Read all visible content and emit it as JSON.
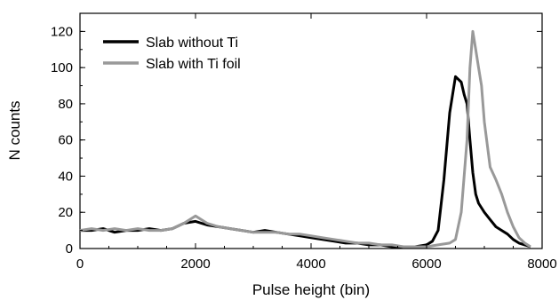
{
  "chart_data": {
    "type": "line",
    "title": "",
    "xlabel": "Pulse height (bin)",
    "ylabel": "N counts",
    "xlim": [
      0,
      8000
    ],
    "ylim": [
      0,
      130
    ],
    "xticks": [
      "0",
      "2000",
      "4000",
      "6000",
      "8000"
    ],
    "yticks": [
      "0",
      "20",
      "40",
      "60",
      "80",
      "100",
      "120"
    ],
    "grid": false,
    "legend_position": "top-left",
    "series": [
      {
        "name": "Slab without Ti",
        "color": "#000000",
        "x": [
          0,
          200,
          400,
          600,
          800,
          1000,
          1200,
          1400,
          1600,
          1800,
          2000,
          2200,
          2400,
          2600,
          2800,
          3000,
          3200,
          3400,
          3600,
          3800,
          4000,
          4200,
          4400,
          4600,
          4800,
          5000,
          5200,
          5400,
          5600,
          5800,
          6000,
          6100,
          6200,
          6300,
          6400,
          6500,
          6600,
          6650,
          6700,
          6750,
          6800,
          6850,
          6900,
          7000,
          7100,
          7200,
          7300,
          7400,
          7500,
          7600,
          7700,
          7800
        ],
        "y": [
          10,
          10,
          11,
          9,
          10,
          10,
          11,
          10,
          11,
          14,
          15,
          13,
          12,
          11,
          10,
          9,
          10,
          9,
          8,
          7,
          6,
          5,
          4,
          3,
          3,
          2,
          2,
          1,
          1,
          1,
          2,
          4,
          10,
          38,
          75,
          95,
          92,
          85,
          80,
          60,
          42,
          30,
          25,
          20,
          16,
          12,
          10,
          8,
          5,
          3,
          2,
          1
        ]
      },
      {
        "name": "Slab with Ti foil",
        "color": "#999999",
        "x": [
          0,
          200,
          400,
          600,
          800,
          1000,
          1200,
          1400,
          1600,
          1800,
          2000,
          2200,
          2400,
          2600,
          2800,
          3000,
          3200,
          3400,
          3600,
          3800,
          4000,
          4200,
          4400,
          4600,
          4800,
          5000,
          5200,
          5400,
          5600,
          5800,
          6000,
          6200,
          6400,
          6500,
          6600,
          6700,
          6750,
          6800,
          6850,
          6900,
          6950,
          7000,
          7100,
          7200,
          7300,
          7400,
          7500,
          7600,
          7700,
          7800
        ],
        "y": [
          10,
          11,
          10,
          11,
          10,
          11,
          10,
          10,
          11,
          14,
          18,
          14,
          12,
          11,
          10,
          9,
          9,
          9,
          8,
          8,
          7,
          6,
          5,
          4,
          3,
          3,
          2,
          2,
          1,
          1,
          1,
          2,
          3,
          5,
          20,
          60,
          100,
          120,
          110,
          100,
          90,
          70,
          45,
          38,
          30,
          20,
          12,
          6,
          3,
          1
        ]
      }
    ]
  }
}
